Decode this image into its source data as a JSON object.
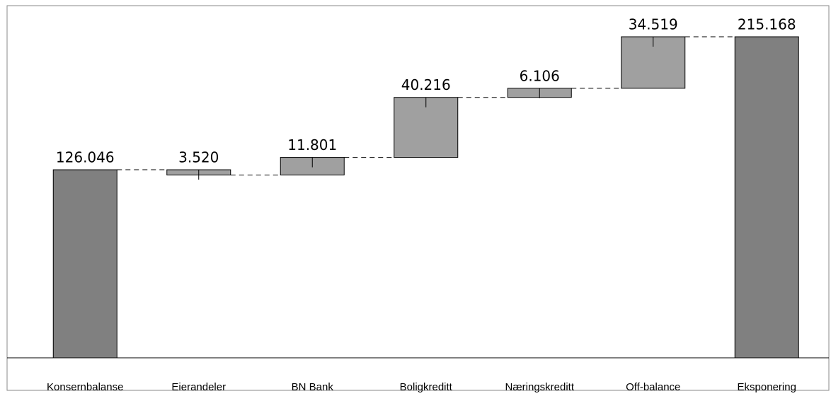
{
  "chart_data": {
    "type": "waterfall",
    "categories": [
      "Konsernbalanse",
      "Eierandeler",
      "BN Bank",
      "Boligkreditt",
      "Næringskreditt",
      "Off-balance",
      "Eksponering"
    ],
    "values": [
      126046,
      -3520,
      11801,
      40216,
      6106,
      34519,
      215168
    ],
    "value_labels": [
      "126.046",
      "3.520",
      "11.801",
      "40.216",
      "6.106",
      "34.519",
      "215.168"
    ],
    "measure": [
      "absolute",
      "relative",
      "relative",
      "relative",
      "relative",
      "relative",
      "total"
    ],
    "total_color": "#808080",
    "delta_color": "#a0a0a0",
    "connector": "dashed"
  }
}
